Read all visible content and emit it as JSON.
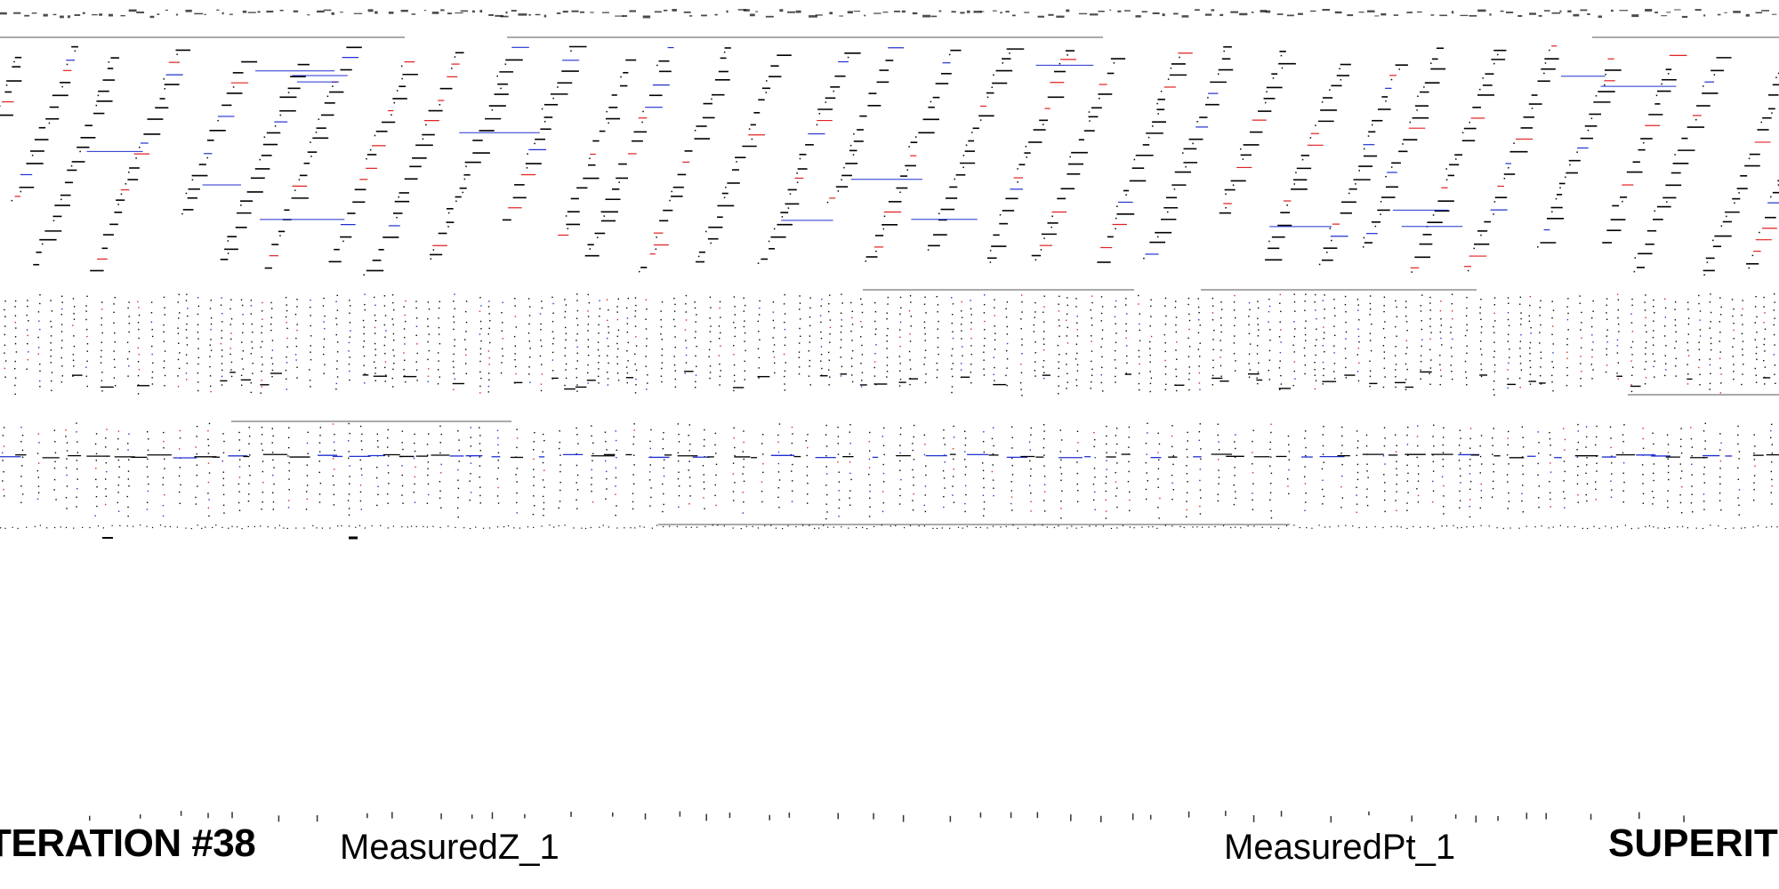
{
  "captions": {
    "iteration": "TERATION #38",
    "measured_z": "MeasuredZ_1",
    "measured_pt": "MeasuredPt_1",
    "superit": "SUPERIT"
  },
  "colors": {
    "background": "#ffffff",
    "ink": "#000000",
    "red_marks": "#e02020",
    "blue_marks": "#2030d0"
  }
}
